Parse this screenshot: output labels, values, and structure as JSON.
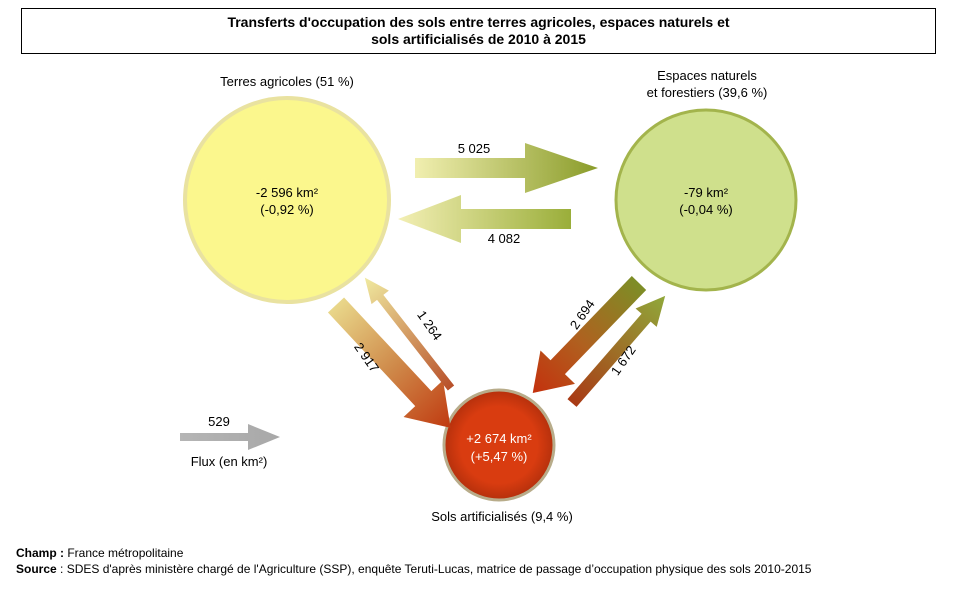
{
  "title": {
    "line1": "Transferts d'occupation des sols entre terres agricoles, espaces naturels et",
    "line2": "sols artificialisés de 2010 à 2015"
  },
  "nodes": {
    "agricultural": {
      "name": "Terres agricoles (51 %)",
      "change": "-2 596 km²",
      "pct": "(-0,92 %)",
      "color": "#fbf78d"
    },
    "natural": {
      "name_line1": "Espaces naturels",
      "name_line2": "et forestiers (39,6 %)",
      "change": "-79 km²",
      "pct": "(-0,04 %)",
      "color": "#cfe08c"
    },
    "artificial": {
      "name": "Sols artificialisés (9,4 %)",
      "change": "+2 674 km²",
      "pct": "(+5,47 %)",
      "color": "#d93c10"
    }
  },
  "flows": {
    "agri_to_nat": "5 025",
    "nat_to_agri": "4 082",
    "agri_to_art": "2 917",
    "art_to_agri": "1 264",
    "nat_to_art": "2 694",
    "art_to_nat": "1 672"
  },
  "legend": {
    "value": "529",
    "label": "Flux (en km²)"
  },
  "notes": {
    "champ_label": "Champ :",
    "champ_value": " France métropolitaine",
    "source_label": "Source",
    "source_value": " : SDES d'après ministère chargé de l'Agriculture (SSP), enquête Teruti-Lucas, matrice de passage d’occupation physique des sols 2010-2015"
  }
}
